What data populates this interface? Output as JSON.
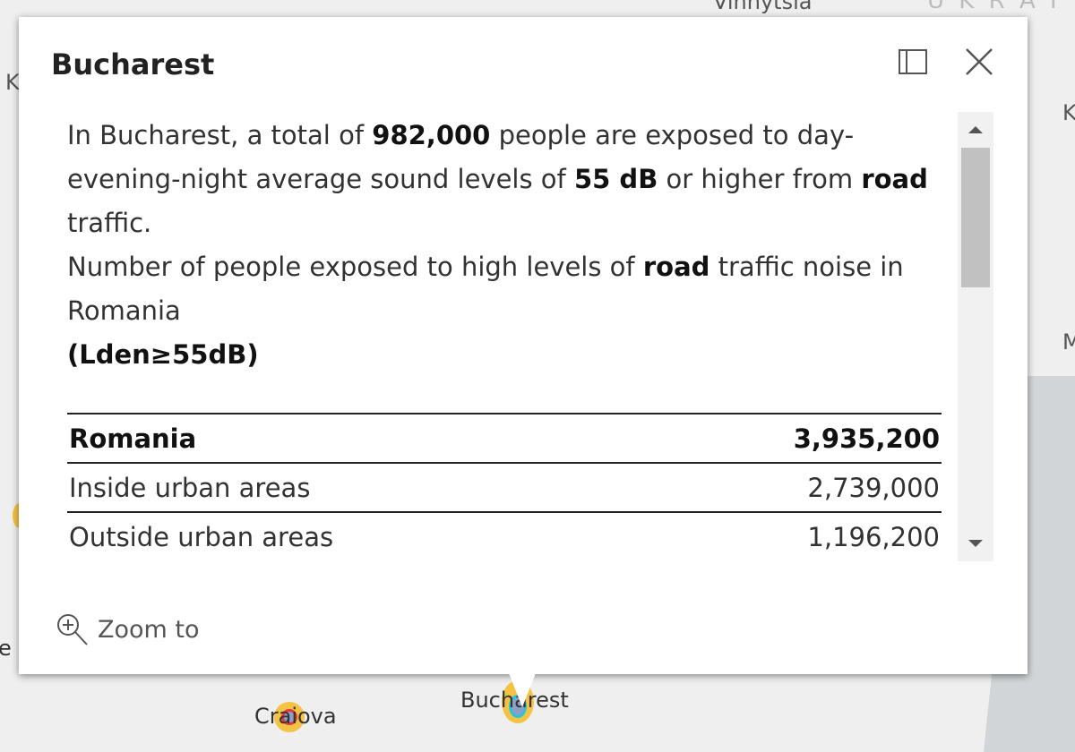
{
  "map": {
    "labels": {
      "vinnytsia": "Vinnytsia",
      "ukraine": "U K R A I",
      "left_k": "K",
      "right_k": "K",
      "right_m": "M",
      "left_e": "e",
      "bucharest": "Bucharest",
      "craiova": "Craiova"
    }
  },
  "popup": {
    "title": "Bucharest",
    "dock_label": "Dock",
    "close_label": "Close",
    "summary": {
      "p1": "In Bucharest, a total of ",
      "count": "982,000",
      "p2": " people are exposed to day-evening-night average sound levels of ",
      "level": "55 dB",
      "p3": " or higher from ",
      "source": "road",
      "p4": " traffic."
    },
    "heading": {
      "p1": "Number of people exposed to high levels of ",
      "source": "road",
      "p2": " traffic noise in Romania",
      "threshold": "(Lden≥55dB)"
    },
    "table": [
      {
        "label": "Romania",
        "value": "3,935,200"
      },
      {
        "label": "Inside urban areas",
        "value": "2,739,000"
      },
      {
        "label": "Outside urban areas",
        "value": "1,196,200"
      }
    ],
    "zoom_to": "Zoom to"
  }
}
